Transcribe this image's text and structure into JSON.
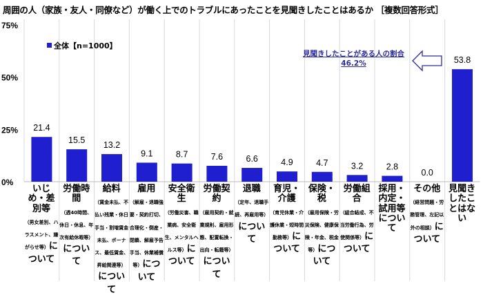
{
  "title": "周囲の人（家族・友人・同僚など）が働く上でのトラブルにあったことを見聞きしたことはあるか ［複数回答形式］",
  "chart_data": {
    "type": "bar",
    "title": "周囲の人（家族・友人・同僚など）が働く上でのトラブルにあったことを見聞きしたことはあるか ［複数回答形式］",
    "ylim": [
      0,
      75
    ],
    "yticks": [
      "0%",
      "25%",
      "50%",
      "75%"
    ],
    "ytick_values": [
      0,
      25,
      50,
      75
    ],
    "grid": "vertical separators",
    "legend": "top-left",
    "series": [
      {
        "name": "全体【n=1000】",
        "color": "#1f1fd0",
        "values": [
          21.4,
          15.5,
          13.2,
          9.1,
          8.7,
          7.6,
          6.6,
          4.9,
          4.7,
          3.2,
          2.8,
          0.0,
          53.8
        ]
      }
    ],
    "value_labels": [
      "21.4",
      "15.5",
      "13.2",
      "9.1",
      "8.7",
      "7.6",
      "6.6",
      "4.9",
      "4.7",
      "3.2",
      "2.8",
      "0.0",
      "53.8"
    ],
    "categories": [
      {
        "main": "いじめ・差別等",
        "detail": "（男女差別、ハラスメント、嫌がらせ等）",
        "suffix": "について"
      },
      {
        "main": "労働時間",
        "detail": "（週40時間、休日・休息、年次有給休暇等）",
        "suffix": "について"
      },
      {
        "main": "給料",
        "detail": "（賃金未払、不払い残業・休日手当・割増賃金未払、ボーナス、最低賃金、昇給関連等）",
        "suffix": "について"
      },
      {
        "main": "雇用",
        "detail": "（解雇・退職強要・契約打切、合理化・倒産・閉鎖、解雇予告手当、休業補償等）",
        "suffix": "について"
      },
      {
        "main": "安全衛生",
        "detail": "（労働災害、職業病、安全衛生、メンタルヘルス等）",
        "suffix": "について"
      },
      {
        "main": "労働契約",
        "detail": "（雇用契約・就業規則、雇用形態、配置転換・出向・転籍等）",
        "suffix": "について"
      },
      {
        "main": "退職",
        "detail": "（定年、退職手続、再雇用等）",
        "suffix": "について"
      },
      {
        "main": "育児・介護",
        "detail": "（育児休業・介護休業・短時間勤務等）",
        "suffix": "について"
      },
      {
        "main": "保険・税",
        "detail": "（雇用保険・労災保険、健康保険・年金、税金等）",
        "suffix": "について"
      },
      {
        "main": "労働組合",
        "detail": "（組合結成、不当労働行為、労使関係等）",
        "suffix": "について"
      },
      {
        "main": "採用・内定・試用等について",
        "detail": "",
        "suffix": ""
      },
      {
        "main": "その他",
        "detail": "（経営問題・労務管理、左記以外の相談）",
        "suffix": "について"
      },
      {
        "main": "見聞きしたことはない",
        "detail": "",
        "suffix": ""
      }
    ],
    "annotation": {
      "text": "見聞きしたことがある人の割合",
      "value": "46.2%"
    }
  }
}
